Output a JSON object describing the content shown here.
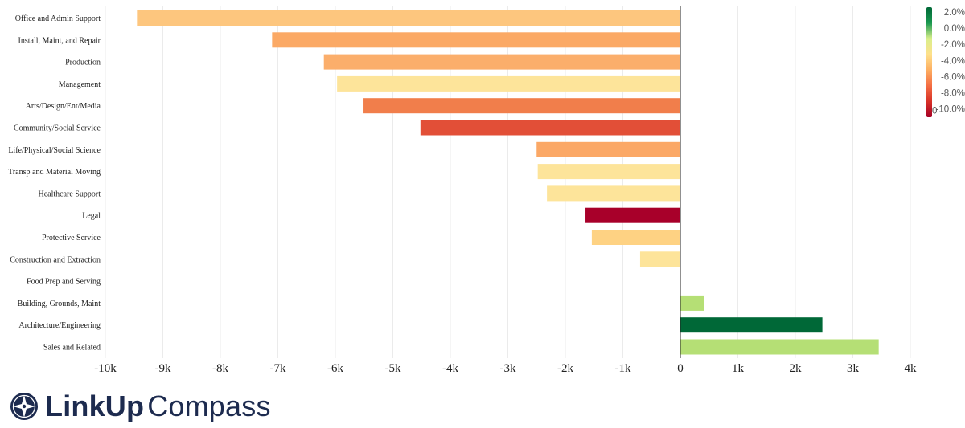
{
  "chart_data": {
    "type": "bar",
    "orientation": "horizontal",
    "categories": [
      "Office and Admin Support",
      "Install, Maint, and Repair",
      "Production",
      "Management",
      "Arts/Design/Ent/Media",
      "Community/Social Service",
      "Life/Physical/Social Science",
      "Transp and Material Moving",
      "Healthcare Support",
      "Legal",
      "Protective Service",
      "Construction and Extraction",
      "Food Prep and Serving",
      "Building, Grounds, Maint",
      "Architecture/Engineering",
      "Sales and Related"
    ],
    "values": [
      -9450,
      -7100,
      -6200,
      -5970,
      -5510,
      -4520,
      -2500,
      -2480,
      -2320,
      -1650,
      -1540,
      -700,
      0,
      410,
      2470,
      3450
    ],
    "colors": [
      "#fdc67e",
      "#fba965",
      "#fbae6b",
      "#fde49a",
      "#f17e4b",
      "#e24f37",
      "#fba866",
      "#fde49a",
      "#fde49a",
      "#a8002a",
      "#fed283",
      "#fde49a",
      "#fee99c",
      "#b5df75",
      "#006837",
      "#b5df75"
    ],
    "xlim": [
      -10000,
      4000
    ],
    "xticks": [
      -10000,
      -9000,
      -8000,
      -7000,
      -6000,
      -5000,
      -4000,
      -3000,
      -2000,
      -1000,
      0,
      1000,
      2000,
      3000,
      4000
    ],
    "xtick_labels": [
      "-10k",
      "-9k",
      "-8k",
      "-7k",
      "-6k",
      "-5k",
      "-4k",
      "-3k",
      "-2k",
      "-1k",
      "0",
      "1k",
      "2k",
      "3k",
      "4k"
    ],
    "grid": true,
    "legend": {
      "type": "colorbar",
      "placement": "top-right",
      "tick_labels": [
        "2.0%",
        "0.0%",
        "-2.0%",
        "-4.0%",
        "-6.0%",
        "-8.0%",
        "-10.0%"
      ],
      "bottom_prefix": "0",
      "colors": [
        "#006837",
        "#1a9850",
        "#d9ef8b",
        "#fee08b",
        "#fdae61",
        "#f46d43",
        "#d73027",
        "#a50026"
      ]
    }
  },
  "branding": {
    "logo_bold": "LinkUp",
    "logo_light": "Compass"
  }
}
